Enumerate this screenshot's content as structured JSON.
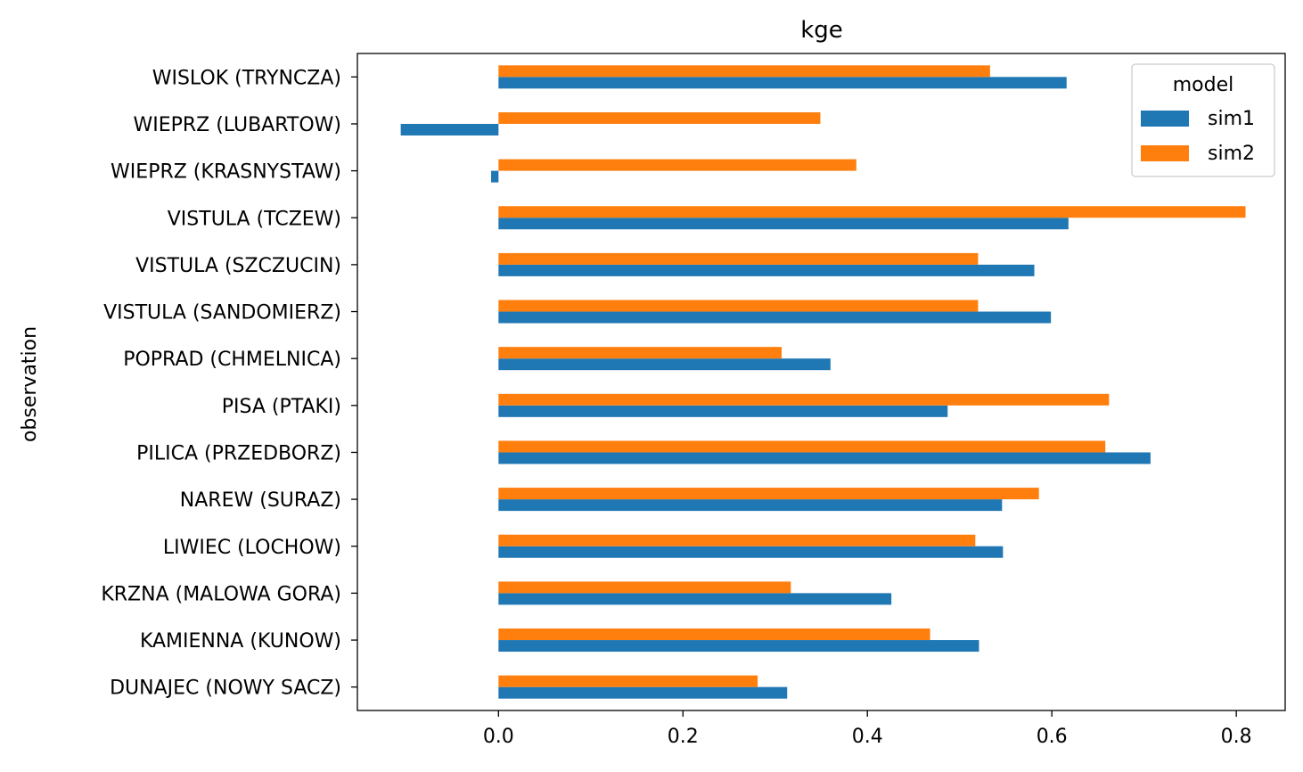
{
  "chart_data": {
    "type": "bar",
    "orientation": "horizontal",
    "title": "kge",
    "xlabel": "",
    "ylabel": "observation",
    "xlim": [
      -0.153,
      0.853
    ],
    "xticks": [
      0.0,
      0.2,
      0.4,
      0.6,
      0.8
    ],
    "xtick_labels": [
      "0.0",
      "0.2",
      "0.4",
      "0.6",
      "0.8"
    ],
    "grid": false,
    "legend": {
      "title": "model",
      "placement": "top-right"
    },
    "categories": [
      "DUNAJEC (NOWY SACZ)",
      "KAMIENNA (KUNOW)",
      "KRZNA (MALOWA GORA)",
      "LIWIEC (LOCHOW)",
      "NAREW (SURAZ)",
      "PILICA (PRZEDBORZ)",
      "PISA (PTAKI)",
      "POPRAD (CHMELNICA)",
      "VISTULA (SANDOMIERZ)",
      "VISTULA (SZCZUCIN)",
      "VISTULA (TCZEW)",
      "WIEPRZ (KRASNYSTAW)",
      "WIEPRZ (LUBARTOW)",
      "WISLOK (TRYNCZA)"
    ],
    "series": [
      {
        "name": "sim1",
        "color": "#1f77b4",
        "values": [
          0.313,
          0.521,
          0.426,
          0.547,
          0.546,
          0.707,
          0.487,
          0.36,
          0.599,
          0.581,
          0.618,
          -0.008,
          -0.106,
          0.616
        ]
      },
      {
        "name": "sim2",
        "color": "#ff7f0e",
        "values": [
          0.281,
          0.468,
          0.317,
          0.517,
          0.586,
          0.658,
          0.662,
          0.307,
          0.52,
          0.52,
          0.81,
          0.388,
          0.349,
          0.533
        ]
      }
    ]
  }
}
